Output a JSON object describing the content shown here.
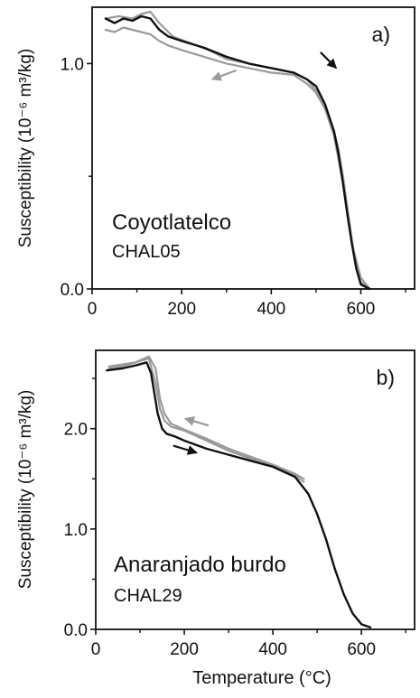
{
  "chart_data": [
    {
      "type": "line",
      "panel_label": "a)",
      "ylabel": "Susceptibility (10⁻⁶ m³/kg)",
      "xlim": [
        0,
        720
      ],
      "ylim": [
        0,
        1.25
      ],
      "xticks": [
        0,
        200,
        400,
        600
      ],
      "xtick_labels": [
        "0",
        "200",
        "400",
        "600"
      ],
      "yticks": [
        0.0,
        1.0
      ],
      "ytick_labels": [
        "0.0",
        "1.0"
      ],
      "annotation_main": "Coyotlatelco",
      "annotation_sub": "CHAL05",
      "series": [
        {
          "color": "#9a9a9a",
          "x": [
            30,
            50,
            70,
            90,
            110,
            130,
            150,
            170,
            200,
            250,
            300,
            350,
            400,
            450,
            480,
            500,
            520,
            540,
            550,
            560,
            570,
            580,
            590,
            600,
            620
          ],
          "y": [
            1.15,
            1.14,
            1.16,
            1.15,
            1.14,
            1.13,
            1.1,
            1.08,
            1.06,
            1.03,
            1.0,
            0.98,
            0.96,
            0.95,
            0.91,
            0.87,
            0.8,
            0.7,
            0.62,
            0.5,
            0.36,
            0.22,
            0.1,
            0.03,
            0.0
          ]
        },
        {
          "color": "#9a9a9a",
          "x": [
            30,
            60,
            90,
            110,
            130,
            150,
            180,
            220,
            260,
            300,
            350,
            400,
            450,
            480,
            500,
            520,
            540,
            560,
            580,
            600,
            620
          ],
          "y": [
            1.2,
            1.21,
            1.2,
            1.22,
            1.23,
            1.18,
            1.12,
            1.09,
            1.06,
            1.02,
            1.0,
            0.98,
            0.96,
            0.93,
            0.88,
            0.8,
            0.68,
            0.47,
            0.2,
            0.05,
            0.0
          ]
        },
        {
          "color": "#111111",
          "x": [
            30,
            50,
            70,
            90,
            110,
            130,
            150,
            170,
            200,
            250,
            300,
            350,
            400,
            450,
            480,
            500,
            520,
            540,
            550,
            560,
            570,
            580,
            590,
            600,
            620
          ],
          "y": [
            1.2,
            1.18,
            1.2,
            1.19,
            1.21,
            1.2,
            1.15,
            1.12,
            1.1,
            1.07,
            1.03,
            1.0,
            0.98,
            0.96,
            0.93,
            0.9,
            0.82,
            0.7,
            0.6,
            0.47,
            0.33,
            0.2,
            0.09,
            0.02,
            0.0
          ]
        }
      ],
      "arrows": [
        {
          "color": "#9a9a9a",
          "from": [
            322,
            0.97
          ],
          "to": [
            268,
            0.93
          ]
        },
        {
          "color": "#111111",
          "from": [
            510,
            1.05
          ],
          "to": [
            545,
            0.98
          ]
        }
      ]
    },
    {
      "type": "line",
      "panel_label": "b)",
      "ylabel": "Susceptibility (10⁻⁶ m³/kg)",
      "xlabel": "Temperature (°C)",
      "xlim": [
        0,
        720
      ],
      "ylim": [
        0,
        2.78
      ],
      "xticks": [
        0,
        200,
        400,
        600
      ],
      "xtick_labels": [
        "0",
        "200",
        "400",
        "600"
      ],
      "yticks": [
        0.0,
        1.0,
        2.0
      ],
      "ytick_labels": [
        "0.0",
        "1.0",
        "2.0"
      ],
      "annotation_main": "Anaranjado burdo",
      "annotation_sub": "CHAL29",
      "series": [
        {
          "color": "#9a9a9a",
          "x": [
            30,
            60,
            90,
            120,
            135,
            145,
            155,
            170,
            200,
            250,
            300,
            350,
            400,
            450,
            470
          ],
          "y": [
            2.62,
            2.64,
            2.66,
            2.7,
            2.45,
            2.2,
            2.08,
            2.02,
            1.98,
            1.88,
            1.78,
            1.7,
            1.64,
            1.55,
            1.5
          ]
        },
        {
          "color": "#9a9a9a",
          "x": [
            30,
            60,
            90,
            120,
            135,
            145,
            155,
            170,
            200,
            250,
            300,
            350,
            400,
            450,
            470
          ],
          "y": [
            2.6,
            2.62,
            2.66,
            2.72,
            2.6,
            2.3,
            2.15,
            2.05,
            1.99,
            1.9,
            1.8,
            1.72,
            1.64,
            1.53,
            1.47
          ]
        },
        {
          "color": "#111111",
          "x": [
            25,
            60,
            90,
            115,
            125,
            140,
            150,
            160,
            180,
            200,
            250,
            300,
            350,
            400,
            450,
            480,
            500,
            520,
            540,
            560,
            580,
            600,
            620
          ],
          "y": [
            2.58,
            2.6,
            2.63,
            2.66,
            2.55,
            2.15,
            2.0,
            1.95,
            1.92,
            1.88,
            1.8,
            1.74,
            1.68,
            1.62,
            1.52,
            1.35,
            1.15,
            0.9,
            0.6,
            0.35,
            0.16,
            0.05,
            0.02
          ]
        }
      ],
      "arrows": [
        {
          "color": "#9a9a9a",
          "from": [
            255,
            2.03
          ],
          "to": [
            202,
            2.1
          ]
        },
        {
          "color": "#111111",
          "from": [
            175,
            1.83
          ],
          "to": [
            228,
            1.76
          ]
        }
      ]
    }
  ]
}
